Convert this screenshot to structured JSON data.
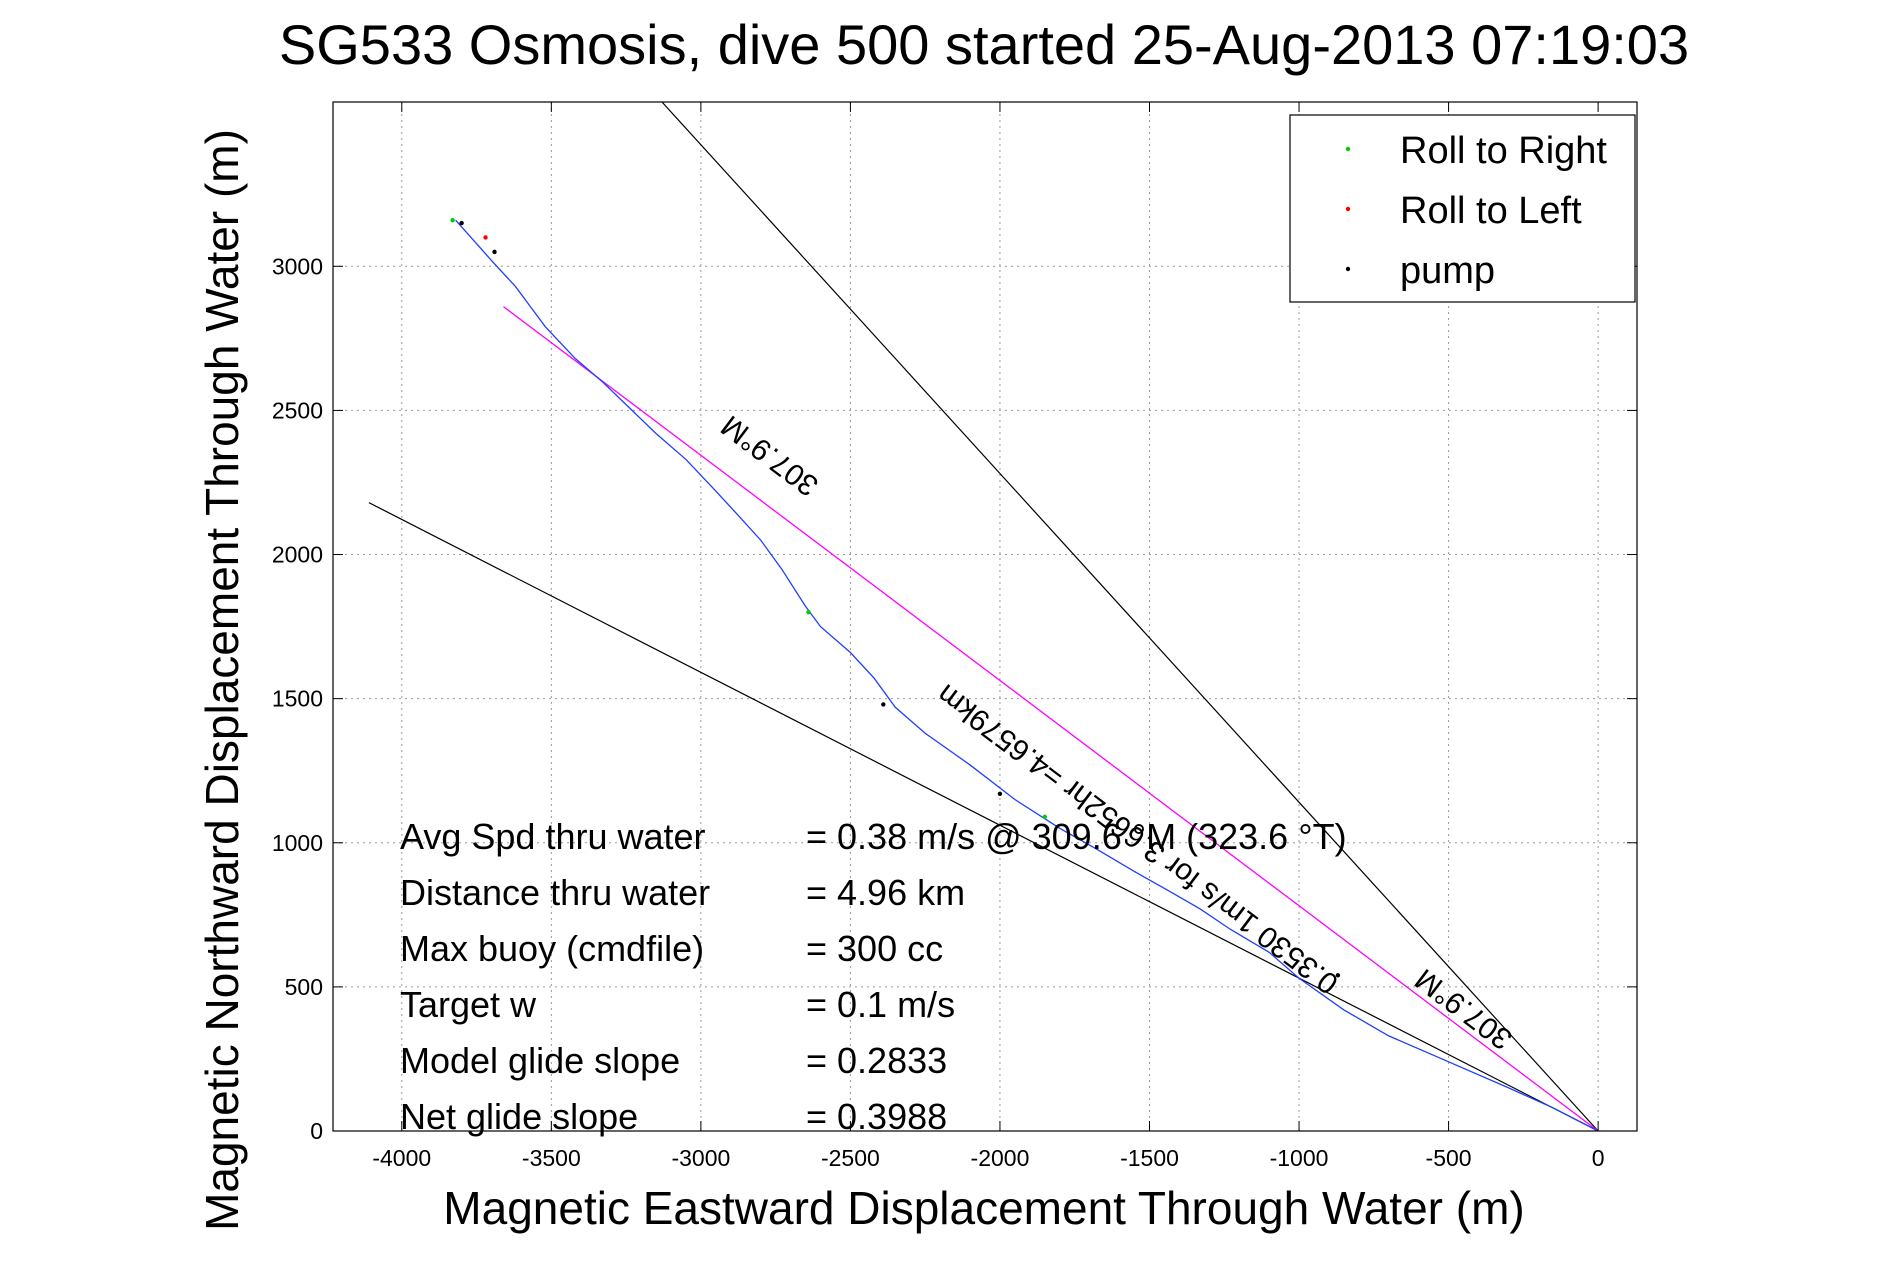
{
  "chart_data": {
    "type": "line",
    "title": "SG533 Osmosis, dive 500 started 25-Aug-2013 07:19:03",
    "xlabel": "Magnetic Eastward Displacement Through Water (m)",
    "ylabel": "Magnetic Northward Displacement Through Water (m)",
    "xlim": [
      -4230,
      130
    ],
    "ylim": [
      0,
      3570
    ],
    "xticks": [
      -4000,
      -3500,
      -3000,
      -2500,
      -2000,
      -1500,
      -1000,
      -500,
      0
    ],
    "yticks": [
      0,
      500,
      1000,
      1500,
      2000,
      2500,
      3000
    ],
    "grid": true,
    "legend_position": "top-right",
    "colors": {
      "track": "#1f3fff",
      "net_heading": "#ff00ff",
      "bounds": "#000000",
      "roll_right": "#00cc00",
      "roll_left": "#ff0000",
      "pump": "#000000"
    },
    "legend": [
      {
        "label": "Roll to Right",
        "color": "#00cc00"
      },
      {
        "label": "Roll to Left",
        "color": "#ff0000"
      },
      {
        "label": "pump",
        "color": "#000000"
      }
    ],
    "track_points": [
      [
        0,
        0
      ],
      [
        -150,
        80
      ],
      [
        -300,
        150
      ],
      [
        -500,
        240
      ],
      [
        -700,
        330
      ],
      [
        -850,
        420
      ],
      [
        -1000,
        530
      ],
      [
        -1100,
        620
      ],
      [
        -1230,
        700
      ],
      [
        -1330,
        770
      ],
      [
        -1430,
        830
      ],
      [
        -1550,
        900
      ],
      [
        -1680,
        980
      ],
      [
        -1800,
        1050
      ],
      [
        -1950,
        1150
      ],
      [
        -2100,
        1270
      ],
      [
        -2250,
        1380
      ],
      [
        -2350,
        1470
      ],
      [
        -2420,
        1570
      ],
      [
        -2500,
        1660
      ],
      [
        -2600,
        1750
      ],
      [
        -2650,
        1820
      ],
      [
        -2730,
        1950
      ],
      [
        -2800,
        2050
      ],
      [
        -2870,
        2130
      ],
      [
        -2950,
        2220
      ],
      [
        -3050,
        2330
      ],
      [
        -3150,
        2420
      ],
      [
        -3250,
        2520
      ],
      [
        -3330,
        2600
      ],
      [
        -3420,
        2680
      ],
      [
        -3520,
        2790
      ],
      [
        -3570,
        2860
      ],
      [
        -3620,
        2930
      ],
      [
        -3700,
        3020
      ],
      [
        -3760,
        3090
      ],
      [
        -3820,
        3160
      ]
    ],
    "net_heading_line": {
      "from": [
        0,
        0
      ],
      "to": [
        -3660,
        2860
      ]
    },
    "bound_lines": [
      {
        "from": [
          0,
          0
        ],
        "to": [
          -3130,
          3570
        ]
      },
      {
        "from": [
          0,
          0
        ],
        "to": [
          -4110,
          2180
        ]
      }
    ],
    "pump_points": [
      [
        -3800,
        3150
      ],
      [
        -3690,
        3050
      ],
      [
        -2390,
        1480
      ],
      [
        -2000,
        1170
      ],
      [
        -870,
        540
      ]
    ],
    "roll_left_points": [
      [
        -3720,
        3100
      ]
    ],
    "roll_right_points": [
      [
        -3830,
        3160
      ],
      [
        -2640,
        1800
      ],
      [
        -1850,
        1090
      ]
    ],
    "annotations": [
      {
        "text": "307.9°M",
        "at": [
          -2750,
          2370
        ],
        "rotate": 217
      },
      {
        "text": "0.3530 1m/s for 3.6652hr =4.6579km",
        "at": [
          -1520,
          1040
        ],
        "rotate": 217
      },
      {
        "text": "307.9°M",
        "at": [
          -430,
          450
        ],
        "rotate": 217
      }
    ],
    "stats": [
      {
        "label": "Avg Spd thru water",
        "value": "=  0.38 m/s @ 309.6 °M (323.6 °T)"
      },
      {
        "label": "Distance thru water",
        "value": "=  4.96 km"
      },
      {
        "label": "Max buoy (cmdfile)",
        "value": "= 300 cc"
      },
      {
        "label": "Target w",
        "value": "= 0.1 m/s"
      },
      {
        "label": "Model glide slope",
        "value": "= 0.2833"
      },
      {
        "label": "Net glide slope",
        "value": "= 0.3988"
      }
    ]
  }
}
